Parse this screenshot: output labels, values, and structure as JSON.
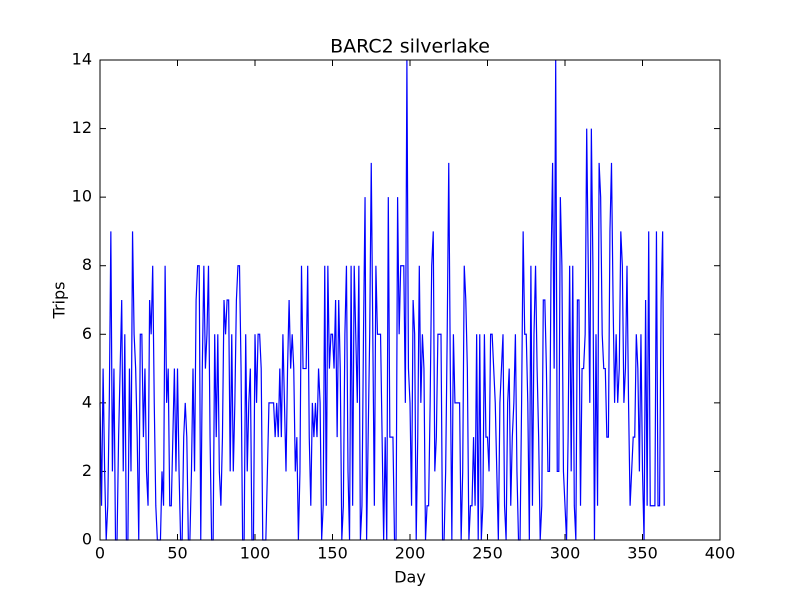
{
  "chart_data": {
    "type": "line",
    "title": "BARC2 silverlake",
    "x_label": "Day",
    "y_label": "Trips",
    "xlim": [
      0,
      400
    ],
    "xticks": [
      0,
      50,
      100,
      150,
      200,
      250,
      300,
      350,
      400
    ],
    "ylim": [
      0,
      14
    ],
    "yticks": [
      0,
      2,
      4,
      6,
      8,
      10,
      12,
      14
    ],
    "grid": false,
    "x": [
      0,
      1,
      2,
      3,
      4,
      5,
      6,
      7,
      8,
      9,
      10,
      11,
      12,
      13,
      14,
      15,
      16,
      17,
      18,
      19,
      20,
      21,
      22,
      23,
      24,
      25,
      26,
      27,
      28,
      29,
      30,
      31,
      32,
      33,
      34,
      35,
      36,
      37,
      38,
      39,
      40,
      41,
      42,
      43,
      44,
      45,
      46,
      47,
      48,
      49,
      50,
      51,
      52,
      53,
      54,
      55,
      56,
      57,
      58,
      59,
      60,
      61,
      62,
      63,
      64,
      65,
      66,
      67,
      68,
      69,
      70,
      71,
      72,
      73,
      74,
      75,
      76,
      77,
      78,
      79,
      80,
      81,
      82,
      83,
      84,
      85,
      86,
      87,
      88,
      89,
      90,
      91,
      92,
      93,
      94,
      95,
      96,
      97,
      98,
      99,
      100,
      101,
      102,
      103,
      104,
      105,
      106,
      107,
      108,
      109,
      110,
      111,
      112,
      113,
      114,
      115,
      116,
      117,
      118,
      119,
      120,
      121,
      122,
      123,
      124,
      125,
      126,
      127,
      128,
      129,
      130,
      131,
      132,
      133,
      134,
      135,
      136,
      137,
      138,
      139,
      140,
      141,
      142,
      143,
      144,
      145,
      146,
      147,
      148,
      149,
      150,
      151,
      152,
      153,
      154,
      155,
      156,
      157,
      158,
      159,
      160,
      161,
      162,
      163,
      164,
      165,
      166,
      167,
      168,
      169,
      170,
      171,
      172,
      173,
      174,
      175,
      176,
      177,
      178,
      179,
      180,
      181,
      182,
      183,
      184,
      185,
      186,
      187,
      188,
      189,
      190,
      191,
      192,
      193,
      194,
      195,
      196,
      197,
      198,
      199,
      200,
      201,
      202,
      203,
      204,
      205,
      206,
      207,
      208,
      209,
      210,
      211,
      212,
      213,
      214,
      215,
      216,
      217,
      218,
      219,
      220,
      221,
      222,
      223,
      224,
      225,
      226,
      227,
      228,
      229,
      230,
      231,
      232,
      233,
      234,
      235,
      236,
      237,
      238,
      239,
      240,
      241,
      242,
      243,
      244,
      245,
      246,
      247,
      248,
      249,
      250,
      251,
      252,
      253,
      254,
      255,
      256,
      257,
      258,
      259,
      260,
      261,
      262,
      263,
      264,
      265,
      266,
      267,
      268,
      269,
      270,
      271,
      272,
      273,
      274,
      275,
      276,
      277,
      278,
      279,
      280,
      281,
      282,
      283,
      284,
      285,
      286,
      287,
      288,
      289,
      290,
      291,
      292,
      293,
      294,
      295,
      296,
      297,
      298,
      299,
      300,
      301,
      302,
      303,
      304,
      305,
      306,
      307,
      308,
      309,
      310,
      311,
      312,
      313,
      314,
      315,
      316,
      317,
      318,
      319,
      320,
      321,
      322,
      323,
      324,
      325,
      326,
      327,
      328,
      329,
      330,
      331,
      332,
      333,
      334,
      335,
      336,
      337,
      338,
      339,
      340,
      341,
      342,
      343,
      344,
      345,
      346,
      347,
      348,
      349,
      350,
      351,
      352,
      353,
      354,
      355,
      356,
      357,
      358,
      359,
      360,
      361,
      362,
      363,
      364
    ],
    "series": [
      {
        "color": "#0000ff",
        "values": [
          4,
          1,
          5,
          2,
          0,
          1,
          4,
          9,
          2,
          5,
          0,
          0,
          3,
          5,
          7,
          2,
          6,
          0,
          0,
          5,
          2,
          9,
          6,
          5,
          3,
          0,
          6,
          6,
          3,
          5,
          2,
          1,
          7,
          6,
          8,
          4,
          1,
          0,
          0,
          0,
          2,
          1,
          8,
          4,
          5,
          1,
          1,
          3,
          5,
          2,
          5,
          2,
          0,
          0,
          3,
          4,
          3,
          0,
          0,
          2,
          5,
          2,
          7,
          8,
          8,
          0,
          5,
          8,
          5,
          6,
          8,
          3,
          0,
          0,
          6,
          3,
          6,
          2,
          1,
          3,
          7,
          6,
          7,
          7,
          2,
          6,
          2,
          4,
          7,
          8,
          8,
          5,
          0,
          0,
          6,
          2,
          4,
          5,
          0,
          0,
          6,
          4,
          6,
          6,
          5,
          0,
          0,
          0,
          2,
          4,
          4,
          4,
          4,
          3,
          4,
          3,
          5,
          3,
          6,
          4,
          2,
          5,
          7,
          5,
          6,
          5,
          2,
          3,
          0,
          2,
          8,
          5,
          5,
          5,
          8,
          3,
          1,
          4,
          3,
          4,
          3,
          5,
          4,
          0,
          1,
          8,
          1,
          8,
          5,
          6,
          6,
          5,
          7,
          3,
          7,
          5,
          0,
          1,
          6,
          8,
          2,
          0,
          8,
          1,
          8,
          6,
          4,
          8,
          0,
          1,
          6,
          10,
          0,
          3,
          6,
          11,
          6,
          1,
          8,
          6,
          6,
          6,
          3,
          0,
          3,
          0,
          10,
          3,
          3,
          3,
          0,
          0,
          10,
          6,
          8,
          8,
          8,
          4,
          14,
          5,
          4,
          1,
          7,
          6,
          0,
          3,
          8,
          4,
          6,
          5,
          0,
          1,
          1,
          4,
          8,
          9,
          2,
          3,
          6,
          6,
          6,
          0,
          0,
          2,
          6,
          11,
          5,
          0,
          6,
          4,
          4,
          4,
          4,
          0,
          2,
          8,
          7,
          5,
          0,
          1,
          1,
          3,
          1,
          6,
          0,
          6,
          0,
          1,
          6,
          3,
          3,
          2,
          6,
          6,
          5,
          4,
          2,
          0,
          4,
          5,
          6,
          1,
          0,
          4,
          5,
          1,
          3,
          4,
          6,
          2,
          0,
          0,
          4,
          9,
          6,
          6,
          4,
          0,
          8,
          1,
          6,
          8,
          5,
          3,
          0,
          1,
          7,
          7,
          5,
          2,
          2,
          8,
          11,
          5,
          14,
          2,
          2,
          10,
          8,
          2,
          1,
          0,
          3,
          8,
          2,
          8,
          1,
          0,
          7,
          7,
          1,
          5,
          5,
          6,
          12,
          8,
          4,
          12,
          8,
          0,
          6,
          1,
          11,
          10,
          6,
          5,
          5,
          3,
          3,
          9,
          11,
          7,
          4,
          6,
          4,
          5,
          9,
          8,
          4,
          5,
          8,
          4,
          1,
          2,
          3,
          3,
          6,
          5,
          2,
          6,
          2,
          0,
          7,
          1,
          9,
          1,
          1,
          1,
          1,
          9,
          1,
          1,
          7,
          9,
          1
        ]
      }
    ]
  }
}
